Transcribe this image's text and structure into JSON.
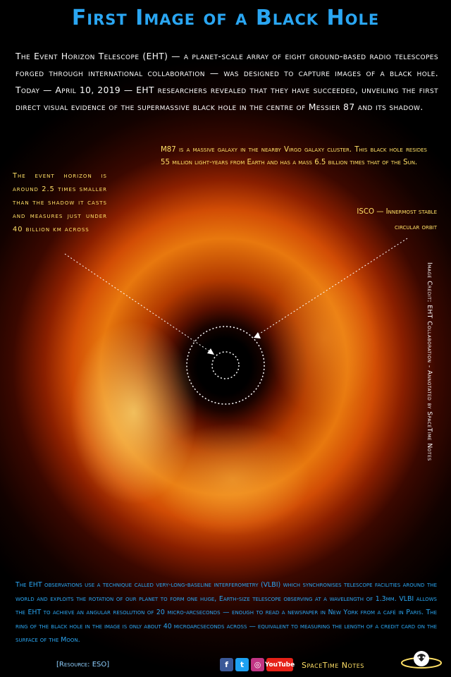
{
  "title": "First Image of a Black Hole",
  "intro": "The Event Horizon Telescope (EHT) — a planet-scale array of eight ground-based radio telescopes forged through international collaboration — was designed to capture images of a black hole. Today — April 10, 2019 — EHT researchers revealed that they have succeeded, unveiling the first direct visual evidence of the supermassive black hole in the centre of Messier 87 and its shadow.",
  "m87_note": "M87 is a massive galaxy in the nearby Virgo galaxy cluster. This black hole resides 55 million light-years from Earth and has a mass 6.5 billion times that of the Sun.",
  "event_horizon_note": "The event horizon is around 2.5 times smaller than the shadow it casts and measures just under 40 billion km across",
  "isco_note": "ISCO — Innermost stable circular orbit",
  "image_credit": "Image Credit: EHT Collaboration - Annotated by SpaceTime Notes",
  "bottom_text": "The EHT observations use a technique called very-long-baseline interferometry (VLBI) which synchronises telescope facilities around the world and exploits the rotation of our planet to form one huge, Earth-size telescope observing at a wavelength of 1.3mm. VLBI allows the EHT to achieve an angular resolution of 20 micro-arcseconds — enough to read a newspaper in New York from a café in Paris. The ring of the black hole in the image is only about 40 microarcseconds across — equivalent to measuring the length of a credit card on the surface of the Moon.",
  "resource": "[Resource: ESO]",
  "social": {
    "facebook": "f",
    "twitter": "t",
    "instagram": "◎",
    "youtube": "YouTube"
  },
  "brand": "SpaceTime Notes",
  "colors": {
    "title": "#2aa6f2",
    "annotation": "#ffe066",
    "bottom_text": "#2aa6f2"
  }
}
